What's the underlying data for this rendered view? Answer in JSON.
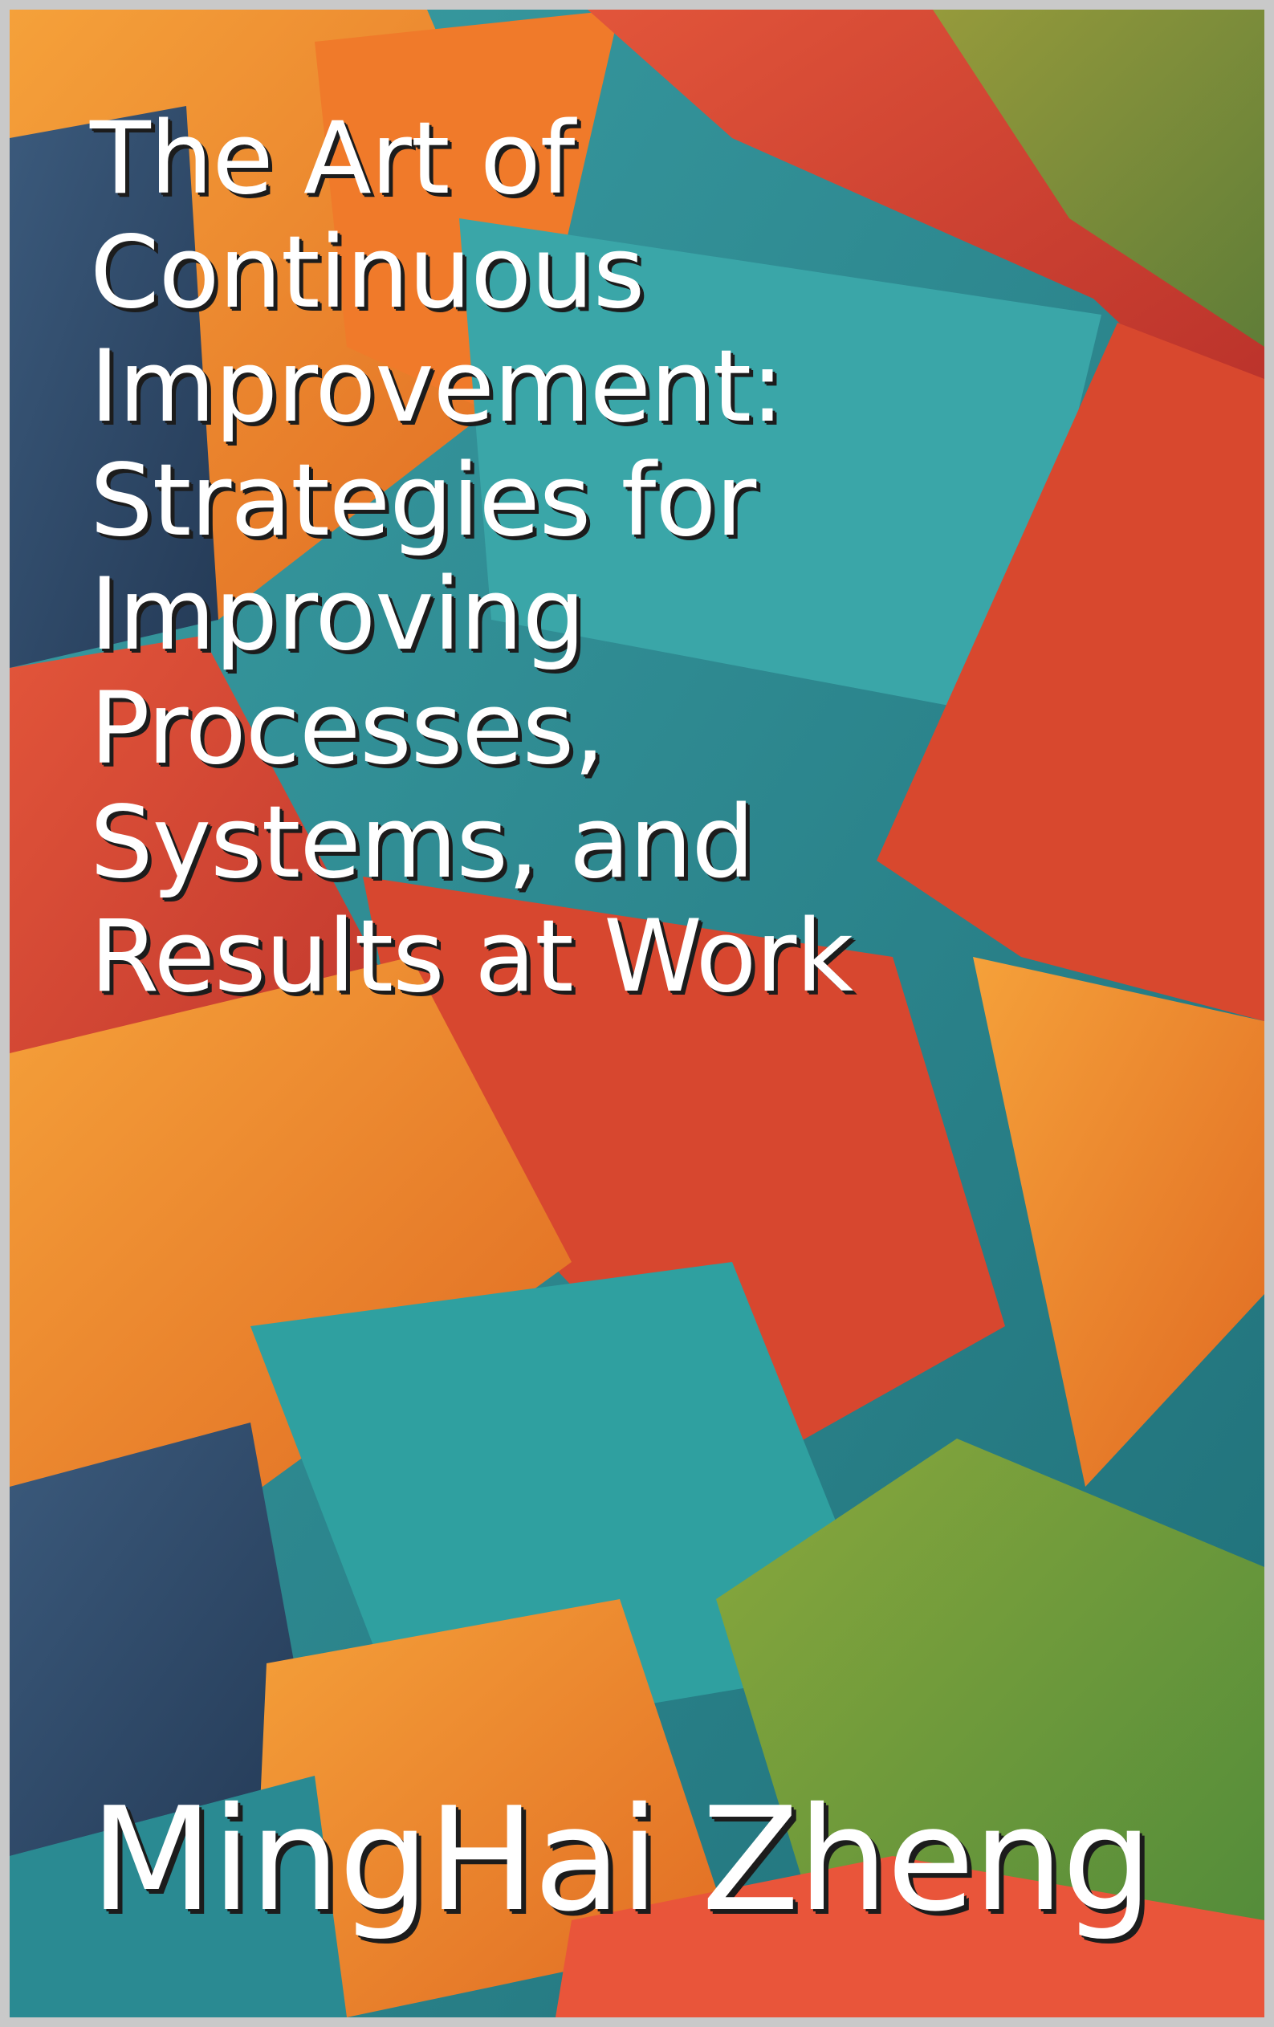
{
  "book": {
    "title": "The Art of\nContinuous\nImprovement:\nStrategies for\nImproving\nProcesses,\nSystems, and\nResults at Work",
    "author": "MingHai Zheng"
  },
  "colors": {
    "teal": "#2c8f95",
    "orange": "#f08a2a",
    "red": "#d9452e",
    "green": "#6f9a3a",
    "navy": "#2f4a6a"
  }
}
